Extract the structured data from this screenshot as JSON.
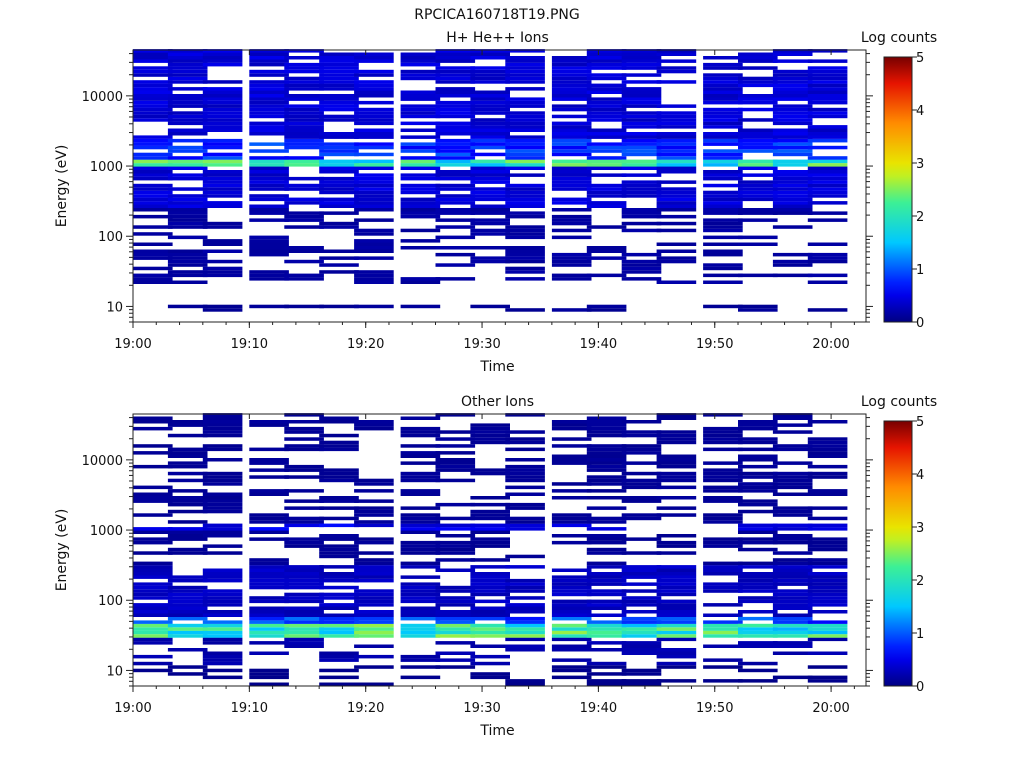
{
  "page_title": "RPCICA160718T19.PNG",
  "chart_data": [
    {
      "type": "heatmap",
      "title": "H+ He++ Ions",
      "xlabel": "Time",
      "ylabel": "Energy (eV)",
      "x_ticks": [
        "19:00",
        "19:10",
        "19:20",
        "19:30",
        "19:40",
        "19:50",
        "20:00"
      ],
      "x_range": [
        "19:00",
        "20:03"
      ],
      "y_scale": "log",
      "y_ticks": [
        10,
        100,
        1000,
        10000
      ],
      "y_tick_labels": [
        "10",
        "100",
        "1000",
        "10000"
      ],
      "y_range": [
        6,
        45000
      ],
      "colorbar": {
        "label": "Log counts",
        "range": [
          0,
          5
        ],
        "ticks": [
          "0",
          "1",
          "2",
          "3",
          "4",
          "5"
        ]
      },
      "time_bins": [
        "19:00",
        "19:03",
        "19:06",
        "19:10",
        "19:13",
        "19:16",
        "19:19",
        "19:23",
        "19:26",
        "19:29",
        "19:32",
        "19:36",
        "19:39",
        "19:42",
        "19:45",
        "19:49",
        "19:52",
        "19:55",
        "19:58"
      ],
      "bands": [
        {
          "energy_eV": [
            1000,
            1300
          ],
          "log_counts": 2.0
        },
        {
          "energy_eV": [
            1300,
            2500
          ],
          "log_counts": 0.8
        },
        {
          "energy_eV": [
            250,
            1000
          ],
          "log_counts": 0.4
        },
        {
          "energy_eV": [
            2500,
            45000
          ],
          "log_counts": 0.4
        },
        {
          "energy_eV": [
            20,
            250
          ],
          "log_counts": 0.15
        },
        {
          "energy_eV": [
            8,
            11
          ],
          "log_counts": 0.1
        }
      ]
    },
    {
      "type": "heatmap",
      "title": "Other Ions",
      "xlabel": "Time",
      "ylabel": "Energy (eV)",
      "x_ticks": [
        "19:00",
        "19:10",
        "19:20",
        "19:30",
        "19:40",
        "19:50",
        "20:00"
      ],
      "x_range": [
        "19:00",
        "20:03"
      ],
      "y_scale": "log",
      "y_ticks": [
        10,
        100,
        1000,
        10000
      ],
      "y_tick_labels": [
        "10",
        "100",
        "1000",
        "10000"
      ],
      "y_range": [
        6,
        45000
      ],
      "colorbar": {
        "label": "Log counts",
        "range": [
          0,
          5
        ],
        "ticks": [
          "0",
          "1",
          "2",
          "3",
          "4",
          "5"
        ]
      },
      "time_bins": [
        "19:00",
        "19:03",
        "19:06",
        "19:10",
        "19:13",
        "19:16",
        "19:19",
        "19:23",
        "19:26",
        "19:29",
        "19:32",
        "19:36",
        "19:39",
        "19:42",
        "19:45",
        "19:49",
        "19:52",
        "19:55",
        "19:58"
      ],
      "bands": [
        {
          "energy_eV": [
            28,
            45
          ],
          "log_counts": 2.0
        },
        {
          "energy_eV": [
            45,
            60
          ],
          "log_counts": 0.9
        },
        {
          "energy_eV": [
            1000,
            1200
          ],
          "log_counts": 0.5
        },
        {
          "energy_eV": [
            12,
            28
          ],
          "log_counts": 0.2
        },
        {
          "energy_eV": [
            60,
            300
          ],
          "log_counts": 0.3
        },
        {
          "energy_eV": [
            300,
            1000
          ],
          "log_counts": 0.1
        },
        {
          "energy_eV": [
            1200,
            45000
          ],
          "log_counts": 0.1
        },
        {
          "energy_eV": [
            6,
            12
          ],
          "log_counts": 0.05
        }
      ]
    }
  ]
}
